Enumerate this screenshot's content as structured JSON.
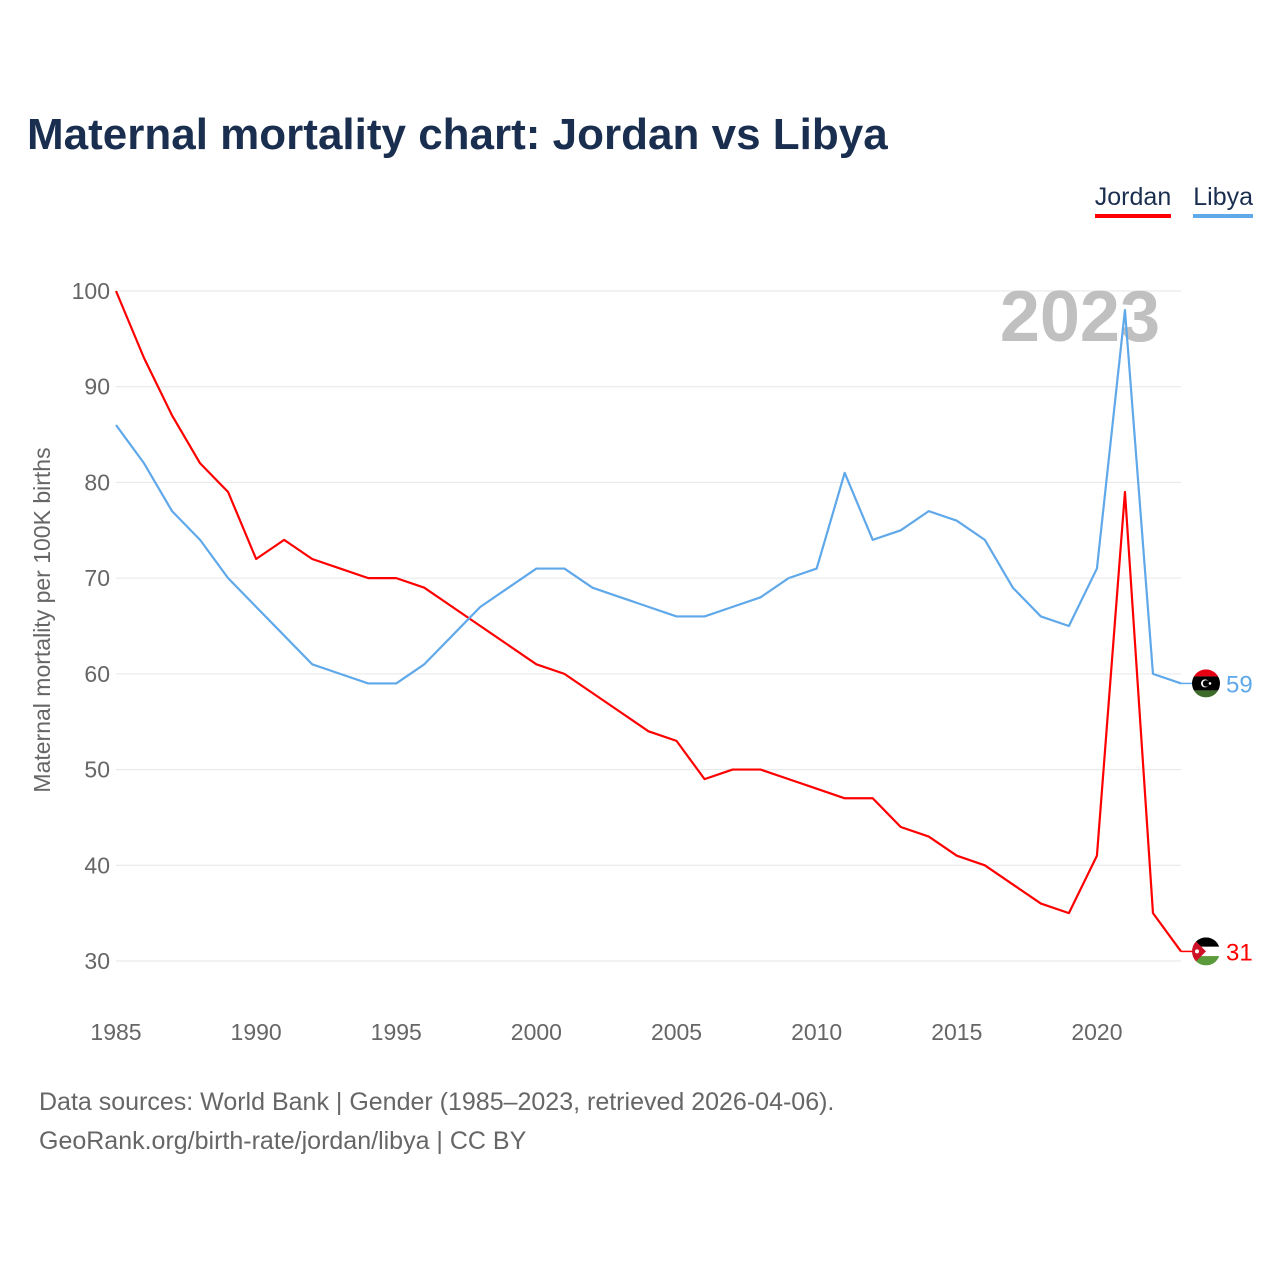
{
  "title": "Maternal mortality chart: Jordan vs Libya",
  "year_label": "2023",
  "footer": {
    "line1": "Data sources: World Bank | Gender (1985–2023, retrieved 2026-04-06).",
    "line2": "GeoRank.org/birth-rate/jordan/libya | CC BY"
  },
  "chart_data": {
    "type": "line",
    "title": "Maternal mortality chart: Jordan vs Libya",
    "xlabel": "",
    "ylabel": "Maternal mortality per 100K births",
    "xlim": [
      1985,
      2023
    ],
    "ylim": [
      30,
      100
    ],
    "xticks": [
      "1985",
      "1990",
      "1995",
      "2000",
      "2005",
      "2010",
      "2015",
      "2020"
    ],
    "yticks": [
      "30",
      "40",
      "50",
      "60",
      "70",
      "80",
      "90",
      "100"
    ],
    "grid": true,
    "legend_position": "top-right",
    "x": [
      1985,
      1986,
      1987,
      1988,
      1989,
      1990,
      1991,
      1992,
      1993,
      1994,
      1995,
      1996,
      1997,
      1998,
      1999,
      2000,
      2001,
      2002,
      2003,
      2004,
      2005,
      2006,
      2007,
      2008,
      2009,
      2010,
      2011,
      2012,
      2013,
      2014,
      2015,
      2016,
      2017,
      2018,
      2019,
      2020,
      2021,
      2022,
      2023
    ],
    "series": [
      {
        "name": "Jordan",
        "color": "#ff0000",
        "end_label": "31",
        "values": [
          100,
          93,
          87,
          82,
          79,
          72,
          74,
          72,
          71,
          70,
          70,
          69,
          67,
          65,
          63,
          61,
          60,
          58,
          56,
          54,
          53,
          49,
          50,
          50,
          49,
          48,
          47,
          47,
          44,
          43,
          41,
          40,
          38,
          36,
          35,
          41,
          79,
          35,
          31
        ]
      },
      {
        "name": "Libya",
        "color": "#5fa8ea",
        "end_label": "59",
        "values": [
          86,
          82,
          77,
          74,
          70,
          67,
          64,
          61,
          60,
          59,
          59,
          61,
          64,
          67,
          69,
          71,
          71,
          69,
          68,
          67,
          66,
          66,
          67,
          68,
          70,
          71,
          81,
          74,
          75,
          77,
          76,
          74,
          69,
          66,
          65,
          71,
          98,
          60,
          59
        ]
      }
    ]
  }
}
